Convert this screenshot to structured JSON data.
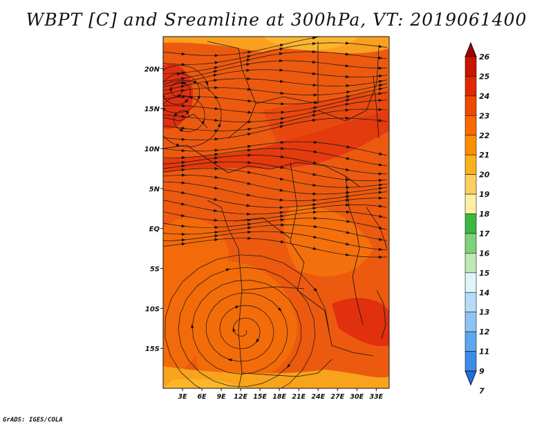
{
  "title": "WBPT [C] and Sreamline at 300hPa, VT: 2019061400",
  "footer": "GrADS: IGES/COLA",
  "map": {
    "lon_range": [
      0,
      35
    ],
    "lat_range": [
      -20,
      24
    ],
    "lat_ticks": [
      {
        "value": 20,
        "label": "20N"
      },
      {
        "value": 15,
        "label": "15N"
      },
      {
        "value": 10,
        "label": "10N"
      },
      {
        "value": 5,
        "label": "5N"
      },
      {
        "value": 0,
        "label": "EQ"
      },
      {
        "value": -5,
        "label": "5S"
      },
      {
        "value": -10,
        "label": "10S"
      },
      {
        "value": -15,
        "label": "15S"
      }
    ],
    "lon_ticks": [
      {
        "value": 3,
        "label": "3E"
      },
      {
        "value": 6,
        "label": "6E"
      },
      {
        "value": 9,
        "label": "9E"
      },
      {
        "value": 12,
        "label": "12E"
      },
      {
        "value": 15,
        "label": "15E"
      },
      {
        "value": 18,
        "label": "18E"
      },
      {
        "value": 21,
        "label": "21E"
      },
      {
        "value": 24,
        "label": "24E"
      },
      {
        "value": 27,
        "label": "27E"
      },
      {
        "value": 30,
        "label": "30E"
      },
      {
        "value": 33,
        "label": "33E"
      }
    ]
  },
  "colorbar": {
    "labels": [
      "26",
      "25",
      "24",
      "23",
      "22",
      "21",
      "20",
      "19",
      "18",
      "17",
      "16",
      "15",
      "14",
      "13",
      "12",
      "11",
      "9",
      "7"
    ],
    "colors": [
      "#a40000",
      "#c81400",
      "#e02800",
      "#ee4a00",
      "#f66a00",
      "#fa9000",
      "#fbb020",
      "#fcd060",
      "#fdf0a0",
      "#3cb840",
      "#7ed27a",
      "#bfe8b4",
      "#e0f4fb",
      "#b4dcf8",
      "#8cc4f4",
      "#5aa8ee",
      "#3c8ce6",
      "#2070e0"
    ]
  }
}
